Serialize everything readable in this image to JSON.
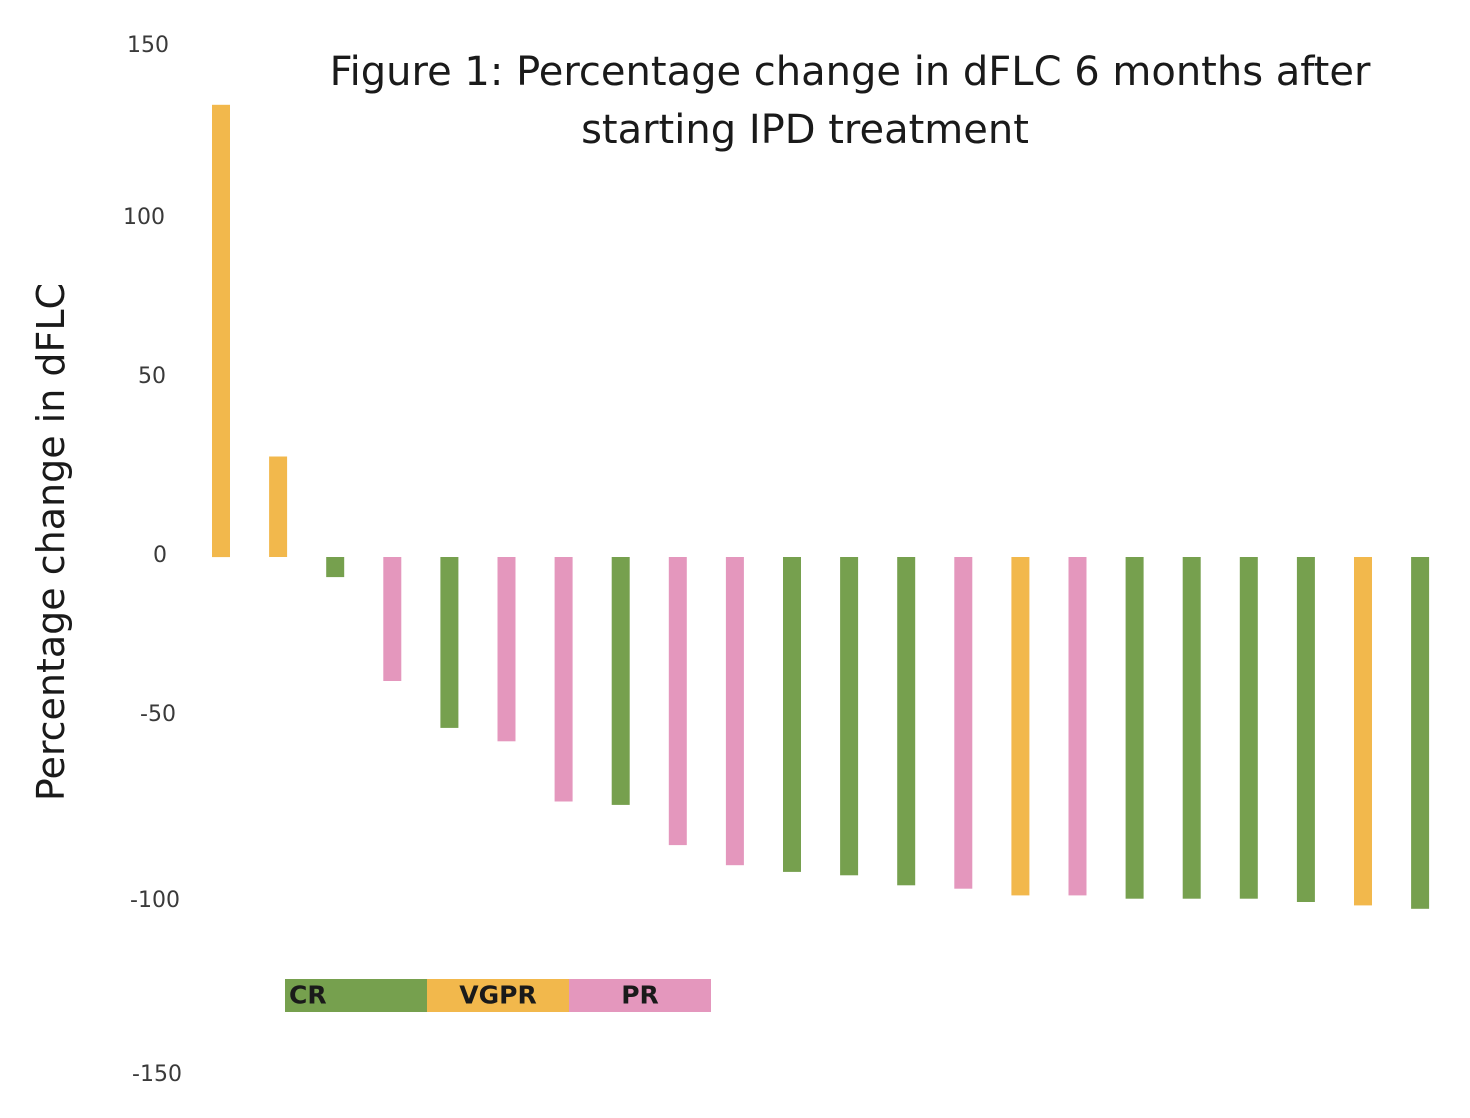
{
  "chart_data": {
    "type": "bar",
    "title_lines": [
      "Figure 1: Percentage change in dFLC 6 months after",
      "starting IPD treatment"
    ],
    "xlabel": "",
    "ylabel": "Percentage change in dFLC",
    "ylim": [
      -150,
      150
    ],
    "y_ticks": [
      150,
      100,
      50,
      0,
      -50,
      -100,
      -150
    ],
    "grid": false,
    "legend_position": "bottom-left",
    "colors": {
      "CR": "#76a04e",
      "VGPR": "#f2b84c",
      "PR": "#e497bd"
    },
    "legend": [
      {
        "label": "CR",
        "key": "CR"
      },
      {
        "label": "VGPR",
        "key": "VGPR"
      },
      {
        "label": "PR",
        "key": "PR"
      }
    ],
    "bars": [
      {
        "value": 135,
        "response": "VGPR"
      },
      {
        "value": 30,
        "response": "VGPR"
      },
      {
        "value": -6,
        "response": "CR"
      },
      {
        "value": -37,
        "response": "PR"
      },
      {
        "value": -51,
        "response": "CR"
      },
      {
        "value": -55,
        "response": "PR"
      },
      {
        "value": -73,
        "response": "PR"
      },
      {
        "value": -74,
        "response": "CR"
      },
      {
        "value": -86,
        "response": "PR"
      },
      {
        "value": -92,
        "response": "PR"
      },
      {
        "value": -94,
        "response": "CR"
      },
      {
        "value": -95,
        "response": "CR"
      },
      {
        "value": -98,
        "response": "CR"
      },
      {
        "value": -99,
        "response": "PR"
      },
      {
        "value": -101,
        "response": "VGPR"
      },
      {
        "value": -101,
        "response": "PR"
      },
      {
        "value": -102,
        "response": "CR"
      },
      {
        "value": -102,
        "response": "CR"
      },
      {
        "value": -102,
        "response": "CR"
      },
      {
        "value": -103,
        "response": "CR"
      },
      {
        "value": -104,
        "response": "VGPR"
      },
      {
        "value": -105,
        "response": "CR"
      }
    ]
  }
}
